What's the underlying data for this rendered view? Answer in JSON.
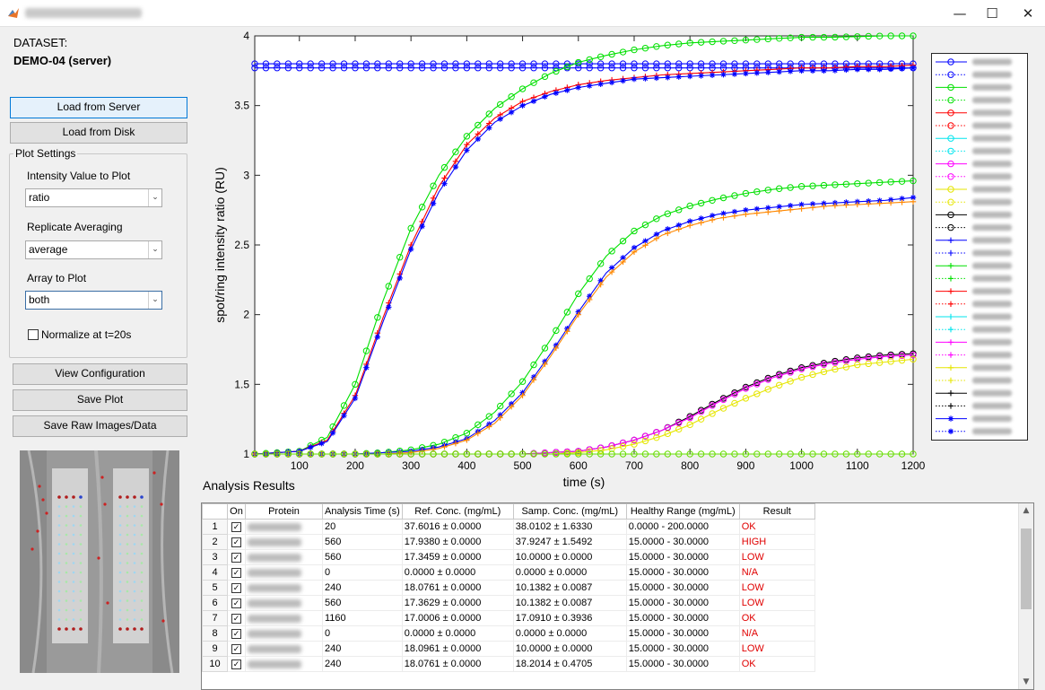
{
  "window": {
    "title": "",
    "close_icon": "close-icon",
    "minimize_icon": "minimize-icon",
    "maximize_icon": "maximize-icon"
  },
  "sidebar": {
    "dataset_label": "DATASET:",
    "dataset_name": "DEMO-04 (server)",
    "load_server_label": "Load from Server",
    "load_disk_label": "Load from Disk",
    "plot_settings": {
      "title": "Plot Settings",
      "intensity_label": "Intensity Value to Plot",
      "intensity_value": "ratio",
      "replicate_label": "Replicate Averaging",
      "replicate_value": "average",
      "array_label": "Array to Plot",
      "array_value": "both",
      "normalize_label": "Normalize at t=20s",
      "normalize_checked": false
    },
    "view_config_label": "View Configuration",
    "save_plot_label": "Save Plot",
    "save_raw_label": "Save Raw Images/Data"
  },
  "chart_data": {
    "type": "line",
    "title": "",
    "xlabel": "time (s)",
    "ylabel": "spot/ring intensity ratio (RU)",
    "xlim": [
      20,
      1200
    ],
    "ylim": [
      1,
      4
    ],
    "xticks": [
      100,
      200,
      300,
      400,
      500,
      600,
      700,
      800,
      900,
      1000,
      1100,
      1200
    ],
    "yticks": [
      1,
      1.5,
      2,
      2.5,
      3,
      3.5,
      4
    ],
    "grid": false,
    "legend_position": "outside-right",
    "x": [
      20,
      100,
      150,
      200,
      250,
      300,
      350,
      400,
      450,
      500,
      550,
      600,
      650,
      700,
      750,
      800,
      850,
      900,
      950,
      1000,
      1050,
      1100,
      1150,
      1200
    ],
    "series": [
      {
        "color": "#0000ff",
        "marker": "o",
        "values": [
          3.8,
          3.8,
          3.8,
          3.8,
          3.8,
          3.8,
          3.8,
          3.8,
          3.8,
          3.8,
          3.8,
          3.8,
          3.8,
          3.8,
          3.8,
          3.8,
          3.8,
          3.8,
          3.8,
          3.8,
          3.8,
          3.8,
          3.8,
          3.8
        ]
      },
      {
        "color": "#0000ff",
        "marker": "o",
        "values": [
          3.77,
          3.77,
          3.77,
          3.77,
          3.77,
          3.77,
          3.77,
          3.77,
          3.77,
          3.77,
          3.77,
          3.77,
          3.77,
          3.77,
          3.77,
          3.77,
          3.77,
          3.77,
          3.77,
          3.77,
          3.77,
          3.77,
          3.77,
          3.77
        ]
      },
      {
        "color": "#00e000",
        "marker": "o",
        "values": [
          1.0,
          1.02,
          1.12,
          1.5,
          2.1,
          2.62,
          3.0,
          3.28,
          3.48,
          3.62,
          3.73,
          3.81,
          3.86,
          3.9,
          3.93,
          3.95,
          3.96,
          3.97,
          3.98,
          3.99,
          3.99,
          3.995,
          4.0,
          4.0
        ]
      },
      {
        "color": "#ff0000",
        "marker": "+",
        "values": [
          1.0,
          1.02,
          1.1,
          1.42,
          1.98,
          2.5,
          2.92,
          3.22,
          3.41,
          3.53,
          3.6,
          3.65,
          3.68,
          3.7,
          3.72,
          3.73,
          3.74,
          3.75,
          3.76,
          3.77,
          3.77,
          3.78,
          3.78,
          3.79
        ]
      },
      {
        "color": "#0000ff",
        "marker": "*",
        "values": [
          1.0,
          1.02,
          1.09,
          1.4,
          1.95,
          2.47,
          2.88,
          3.18,
          3.38,
          3.5,
          3.58,
          3.63,
          3.66,
          3.69,
          3.7,
          3.71,
          3.72,
          3.73,
          3.74,
          3.75,
          3.75,
          3.76,
          3.76,
          3.77
        ]
      },
      {
        "color": "#00e000",
        "marker": "o",
        "values": [
          1.0,
          1.0,
          1.0,
          1.0,
          1.01,
          1.03,
          1.07,
          1.15,
          1.3,
          1.52,
          1.82,
          2.15,
          2.42,
          2.6,
          2.71,
          2.78,
          2.83,
          2.87,
          2.9,
          2.92,
          2.93,
          2.94,
          2.95,
          2.96
        ]
      },
      {
        "color": "#0000ff",
        "marker": "*",
        "values": [
          1.0,
          1.0,
          1.0,
          1.0,
          1.01,
          1.02,
          1.05,
          1.11,
          1.24,
          1.44,
          1.72,
          2.02,
          2.3,
          2.48,
          2.6,
          2.67,
          2.72,
          2.75,
          2.77,
          2.79,
          2.8,
          2.81,
          2.82,
          2.84
        ]
      },
      {
        "color": "#ff8800",
        "marker": "+",
        "values": [
          1.0,
          1.0,
          1.0,
          1.0,
          1.0,
          1.01,
          1.04,
          1.1,
          1.22,
          1.42,
          1.7,
          2.0,
          2.27,
          2.45,
          2.57,
          2.64,
          2.69,
          2.72,
          2.74,
          2.76,
          2.78,
          2.79,
          2.8,
          2.81
        ]
      },
      {
        "color": "#000000",
        "marker": "o",
        "values": [
          1.0,
          1.0,
          1.0,
          1.0,
          1.0,
          1.0,
          1.0,
          1.0,
          1.0,
          1.0,
          1.01,
          1.02,
          1.05,
          1.1,
          1.17,
          1.27,
          1.38,
          1.48,
          1.56,
          1.62,
          1.66,
          1.69,
          1.71,
          1.72
        ]
      },
      {
        "color": "#ff00ff",
        "marker": "o",
        "values": [
          1.0,
          1.0,
          1.0,
          1.0,
          1.0,
          1.0,
          1.0,
          1.0,
          1.0,
          1.0,
          1.01,
          1.02,
          1.05,
          1.1,
          1.17,
          1.26,
          1.37,
          1.47,
          1.55,
          1.61,
          1.65,
          1.68,
          1.7,
          1.71
        ]
      },
      {
        "color": "#e6e600",
        "marker": "o",
        "values": [
          1.0,
          1.0,
          1.0,
          1.0,
          1.0,
          1.0,
          1.0,
          1.0,
          1.0,
          1.0,
          1.0,
          1.01,
          1.03,
          1.07,
          1.13,
          1.21,
          1.31,
          1.4,
          1.48,
          1.55,
          1.6,
          1.64,
          1.66,
          1.68
        ]
      },
      {
        "color": "#66dd00",
        "marker": "o",
        "values": [
          1.0,
          1.0,
          1.0,
          1.0,
          1.0,
          1.0,
          1.0,
          1.0,
          1.0,
          1.0,
          1.0,
          1.0,
          1.0,
          1.0,
          1.0,
          1.0,
          1.0,
          1.0,
          1.0,
          1.0,
          1.0,
          1.0,
          1.0,
          1.0
        ]
      }
    ],
    "legend_entries": [
      {
        "color": "#0000ff",
        "style": "solid",
        "marker": "o"
      },
      {
        "color": "#0000ff",
        "style": "dotted",
        "marker": "o"
      },
      {
        "color": "#00e000",
        "style": "solid",
        "marker": "o"
      },
      {
        "color": "#00e000",
        "style": "dotted",
        "marker": "o"
      },
      {
        "color": "#ff0000",
        "style": "solid",
        "marker": "o"
      },
      {
        "color": "#ff0000",
        "style": "dotted",
        "marker": "o"
      },
      {
        "color": "#00e5ee",
        "style": "solid",
        "marker": "o"
      },
      {
        "color": "#00e5ee",
        "style": "dotted",
        "marker": "o"
      },
      {
        "color": "#ff00ff",
        "style": "solid",
        "marker": "o"
      },
      {
        "color": "#ff00ff",
        "style": "dotted",
        "marker": "o"
      },
      {
        "color": "#e6e600",
        "style": "solid",
        "marker": "o"
      },
      {
        "color": "#e6e600",
        "style": "dotted",
        "marker": "o"
      },
      {
        "color": "#000000",
        "style": "solid",
        "marker": "o"
      },
      {
        "color": "#000000",
        "style": "dotted",
        "marker": "o"
      },
      {
        "color": "#0000ff",
        "style": "solid",
        "marker": "+"
      },
      {
        "color": "#0000ff",
        "style": "dotted",
        "marker": "+"
      },
      {
        "color": "#00e000",
        "style": "solid",
        "marker": "+"
      },
      {
        "color": "#00e000",
        "style": "dotted",
        "marker": "+"
      },
      {
        "color": "#ff0000",
        "style": "solid",
        "marker": "+"
      },
      {
        "color": "#ff0000",
        "style": "dotted",
        "marker": "+"
      },
      {
        "color": "#00e5ee",
        "style": "solid",
        "marker": "+"
      },
      {
        "color": "#00e5ee",
        "style": "dotted",
        "marker": "+"
      },
      {
        "color": "#ff00ff",
        "style": "solid",
        "marker": "+"
      },
      {
        "color": "#ff00ff",
        "style": "dotted",
        "marker": "+"
      },
      {
        "color": "#e6e600",
        "style": "solid",
        "marker": "+"
      },
      {
        "color": "#e6e600",
        "style": "dotted",
        "marker": "+"
      },
      {
        "color": "#000000",
        "style": "solid",
        "marker": "+"
      },
      {
        "color": "#000000",
        "style": "dotted",
        "marker": "+"
      },
      {
        "color": "#0000ff",
        "style": "solid",
        "marker": "*"
      },
      {
        "color": "#0000ff",
        "style": "dotted",
        "marker": "*"
      }
    ]
  },
  "results": {
    "title": "Analysis Results",
    "columns": [
      "",
      "On",
      "Protein",
      "Analysis Time (s)",
      "Ref. Conc. (mg/mL)",
      "Samp. Conc. (mg/mL)",
      "Healthy Range (mg/mL)",
      "Result"
    ],
    "result_color": "#e00000",
    "rows": [
      {
        "idx": "1",
        "time": "20",
        "ref": "37.6016 ± 0.0000",
        "samp": "38.0102 ± 1.6330",
        "range": "0.0000 - 200.0000",
        "result": "OK"
      },
      {
        "idx": "2",
        "time": "560",
        "ref": "17.9380 ± 0.0000",
        "samp": "37.9247 ± 1.5492",
        "range": "15.0000 - 30.0000",
        "result": "HIGH"
      },
      {
        "idx": "3",
        "time": "560",
        "ref": "17.3459 ± 0.0000",
        "samp": "10.0000 ± 0.0000",
        "range": "15.0000 - 30.0000",
        "result": "LOW"
      },
      {
        "idx": "4",
        "time": "0",
        "ref": "0.0000 ± 0.0000",
        "samp": "0.0000 ± 0.0000",
        "range": "15.0000 - 30.0000",
        "result": "N/A"
      },
      {
        "idx": "5",
        "time": "240",
        "ref": "18.0761 ± 0.0000",
        "samp": "10.1382 ± 0.0087",
        "range": "15.0000 - 30.0000",
        "result": "LOW"
      },
      {
        "idx": "6",
        "time": "560",
        "ref": "17.3629 ± 0.0000",
        "samp": "10.1382 ± 0.0087",
        "range": "15.0000 - 30.0000",
        "result": "LOW"
      },
      {
        "idx": "7",
        "time": "1160",
        "ref": "17.0006 ± 0.0000",
        "samp": "17.0910 ± 0.3936",
        "range": "15.0000 - 30.0000",
        "result": "OK"
      },
      {
        "idx": "8",
        "time": "0",
        "ref": "0.0000 ± 0.0000",
        "samp": "0.0000 ± 0.0000",
        "range": "15.0000 - 30.0000",
        "result": "N/A"
      },
      {
        "idx": "9",
        "time": "240",
        "ref": "18.0961 ± 0.0000",
        "samp": "10.0000 ± 0.0000",
        "range": "15.0000 - 30.0000",
        "result": "LOW"
      },
      {
        "idx": "10",
        "time": "240",
        "ref": "18.0761 ± 0.0000",
        "samp": "18.2014 ± 0.4705",
        "range": "15.0000 - 30.0000",
        "result": "OK"
      }
    ]
  }
}
